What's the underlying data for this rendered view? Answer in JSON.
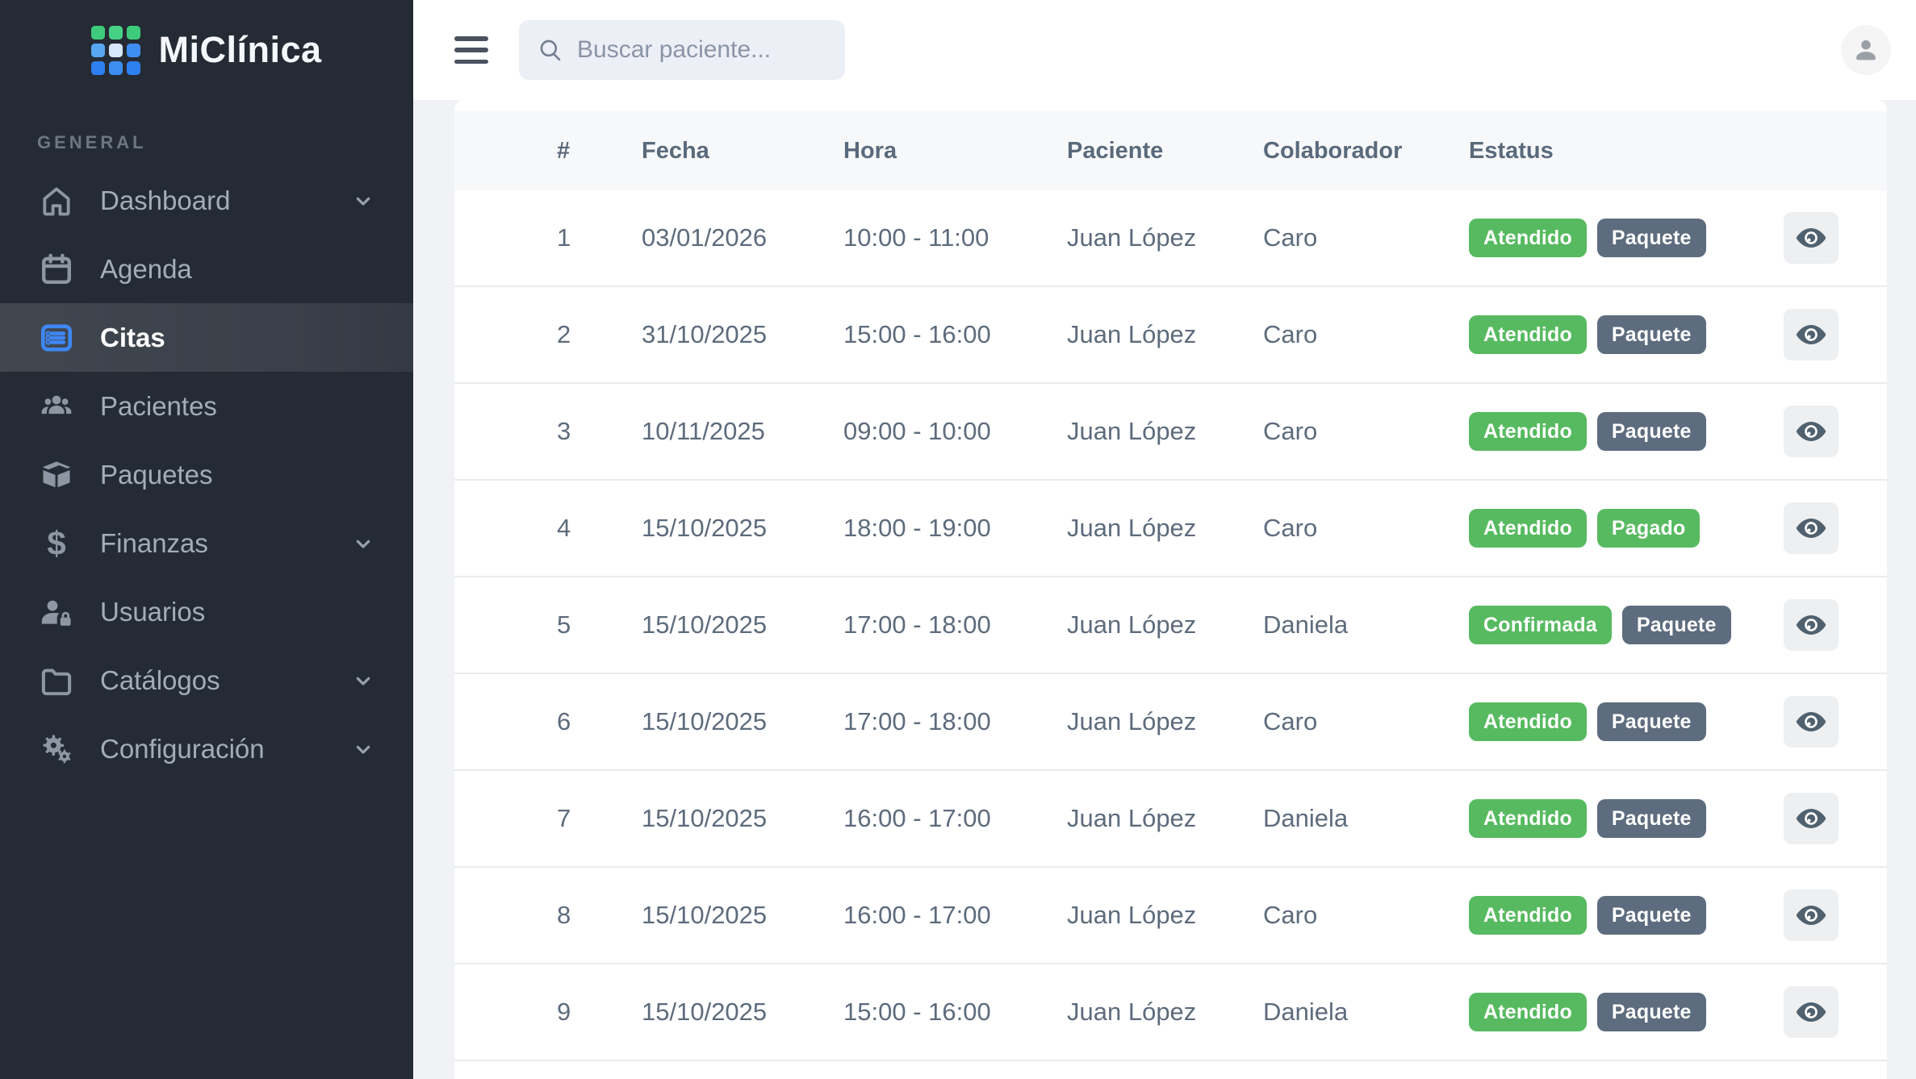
{
  "app": {
    "name": "MiClínica"
  },
  "sidebar": {
    "section_label": "GENERAL",
    "items": [
      {
        "label": "Dashboard",
        "icon": "home-icon",
        "chevron": true,
        "active": false
      },
      {
        "label": "Agenda",
        "icon": "calendar-icon",
        "chevron": false,
        "active": false
      },
      {
        "label": "Citas",
        "icon": "list-icon",
        "chevron": false,
        "active": true
      },
      {
        "label": "Pacientes",
        "icon": "patients-icon",
        "chevron": false,
        "active": false
      },
      {
        "label": "Paquetes",
        "icon": "package-icon",
        "chevron": false,
        "active": false
      },
      {
        "label": "Finanzas",
        "icon": "dollar-icon",
        "icon_glyph": "$",
        "chevron": true,
        "active": false
      },
      {
        "label": "Usuarios",
        "icon": "user-lock-icon",
        "chevron": false,
        "active": false
      },
      {
        "label": "Catálogos",
        "icon": "folder-icon",
        "chevron": true,
        "active": false
      },
      {
        "label": "Configuración",
        "icon": "gears-icon",
        "chevron": true,
        "active": false
      }
    ]
  },
  "topbar": {
    "search_placeholder": "Buscar paciente..."
  },
  "table": {
    "columns": [
      "#",
      "Fecha",
      "Hora",
      "Paciente",
      "Colaborador",
      "Estatus"
    ],
    "rows": [
      {
        "num": "1",
        "fecha": "03/01/2026",
        "hora": "10:00 - 11:00",
        "paciente": "Juan López",
        "colaborador": "Caro",
        "badges": [
          {
            "label": "Atendido",
            "color": "green"
          },
          {
            "label": "Paquete",
            "color": "slate"
          }
        ]
      },
      {
        "num": "2",
        "fecha": "31/10/2025",
        "hora": "15:00 - 16:00",
        "paciente": "Juan López",
        "colaborador": "Caro",
        "badges": [
          {
            "label": "Atendido",
            "color": "green"
          },
          {
            "label": "Paquete",
            "color": "slate"
          }
        ]
      },
      {
        "num": "3",
        "fecha": "10/11/2025",
        "hora": "09:00 - 10:00",
        "paciente": "Juan López",
        "colaborador": "Caro",
        "badges": [
          {
            "label": "Atendido",
            "color": "green"
          },
          {
            "label": "Paquete",
            "color": "slate"
          }
        ]
      },
      {
        "num": "4",
        "fecha": "15/10/2025",
        "hora": "18:00 - 19:00",
        "paciente": "Juan López",
        "colaborador": "Caro",
        "badges": [
          {
            "label": "Atendido",
            "color": "green"
          },
          {
            "label": "Pagado",
            "color": "green"
          }
        ]
      },
      {
        "num": "5",
        "fecha": "15/10/2025",
        "hora": "17:00 - 18:00",
        "paciente": "Juan López",
        "colaborador": "Daniela",
        "badges": [
          {
            "label": "Confirmada",
            "color": "green"
          },
          {
            "label": "Paquete",
            "color": "slate"
          }
        ]
      },
      {
        "num": "6",
        "fecha": "15/10/2025",
        "hora": "17:00 - 18:00",
        "paciente": "Juan López",
        "colaborador": "Caro",
        "badges": [
          {
            "label": "Atendido",
            "color": "green"
          },
          {
            "label": "Paquete",
            "color": "slate"
          }
        ]
      },
      {
        "num": "7",
        "fecha": "15/10/2025",
        "hora": "16:00 - 17:00",
        "paciente": "Juan López",
        "colaborador": "Daniela",
        "badges": [
          {
            "label": "Atendido",
            "color": "green"
          },
          {
            "label": "Paquete",
            "color": "slate"
          }
        ]
      },
      {
        "num": "8",
        "fecha": "15/10/2025",
        "hora": "16:00 - 17:00",
        "paciente": "Juan López",
        "colaborador": "Caro",
        "badges": [
          {
            "label": "Atendido",
            "color": "green"
          },
          {
            "label": "Paquete",
            "color": "slate"
          }
        ]
      },
      {
        "num": "9",
        "fecha": "15/10/2025",
        "hora": "15:00 - 16:00",
        "paciente": "Juan López",
        "colaborador": "Daniela",
        "badges": [
          {
            "label": "Atendido",
            "color": "green"
          },
          {
            "label": "Paquete",
            "color": "slate"
          }
        ]
      }
    ]
  },
  "colors": {
    "accent_blue": "#3f87f5",
    "badge": {
      "green": "#57ba60",
      "slate": "#5d6c7e"
    },
    "sidebar_bg": "#252b34",
    "sidebar_active": "#3d434c",
    "content_bg": "#f1f2f6",
    "header_bg": "#f7f8fa",
    "table_text": "#5d6b7c",
    "logo_grid": [
      "#3ecb7c",
      "#46d186",
      "#3ecb7c",
      "#57a7f3",
      "#d7e7fb",
      "#3e8ef2",
      "#2e7ff0",
      "#3e8ef2",
      "#2e7ff0"
    ]
  }
}
